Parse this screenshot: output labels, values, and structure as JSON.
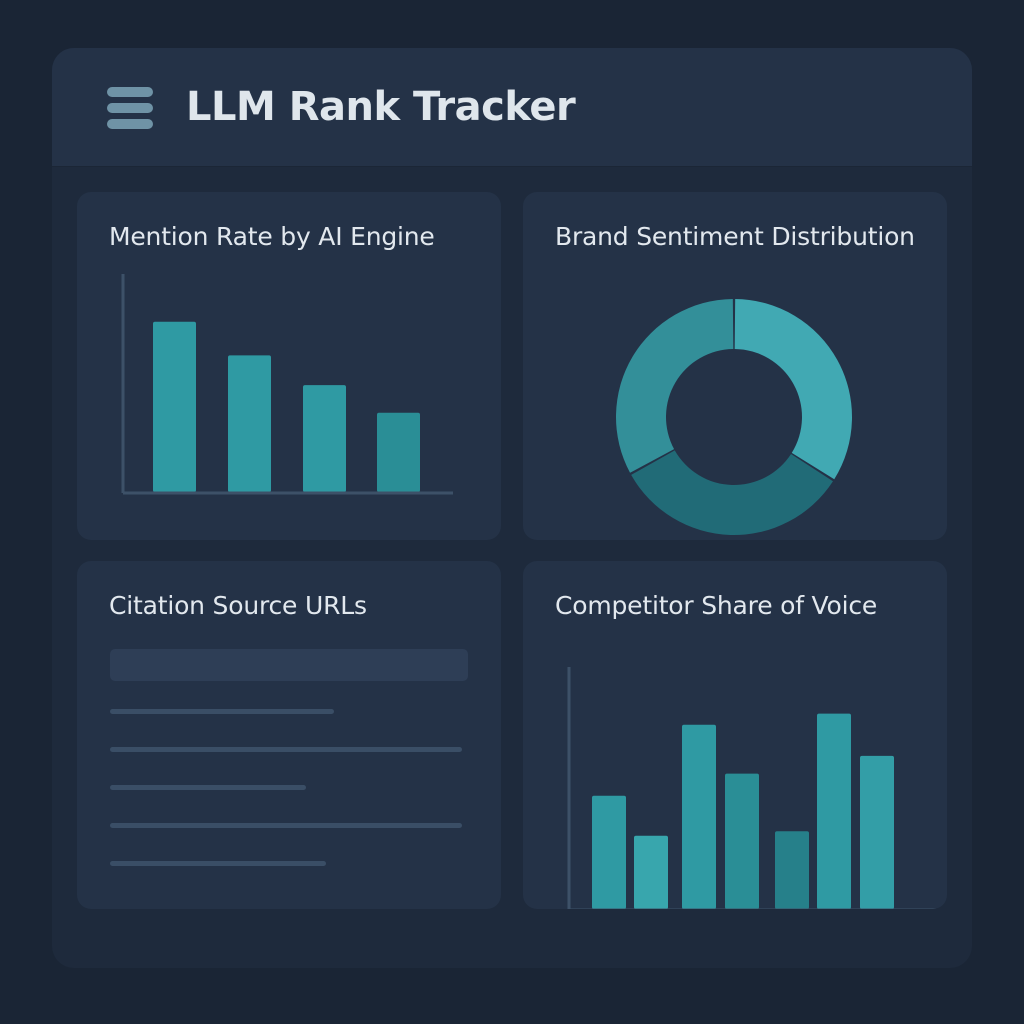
{
  "app": {
    "title": "LLM Rank Tracker",
    "menu_icon": "hamburger-menu-icon"
  },
  "colors": {
    "background": "#1a2535",
    "panel": "#1e2a3c",
    "card": "#243247",
    "accent_teal": "#2f9aa3",
    "accent_teal_light": "#41a9b3",
    "accent_teal_dark": "#216b77",
    "text": "#e2e8ee"
  },
  "cards": {
    "mention": {
      "title": "Mention Rate by AI Engine"
    },
    "sentiment": {
      "title": "Brand Sentiment Distribution"
    },
    "citations": {
      "title": "Citation Source URLs"
    },
    "competitor": {
      "title": "Competitor Share of Voice"
    }
  },
  "chart_data": [
    {
      "type": "bar",
      "values": [
        86,
        69,
        54,
        40
      ],
      "ylim": [
        0,
        100
      ],
      "colors": [
        "#2f9aa3",
        "#2f9aa3",
        "#2f9aa3",
        "#2a8e96"
      ],
      "grid": false,
      "title": "Mention Rate by AI Engine"
    },
    {
      "type": "pie",
      "donut": true,
      "values": [
        34,
        33,
        33
      ],
      "colors": [
        "#41a9b3",
        "#216b77",
        "#338f99"
      ],
      "title": "Brand Sentiment Distribution"
    },
    {
      "type": "bar",
      "values": [
        51,
        33,
        83,
        61,
        35,
        88,
        69
      ],
      "ylim": [
        0,
        100
      ],
      "colors": [
        "#2f9aa3",
        "#38a6ad",
        "#2f9aa3",
        "#2a8e96",
        "#26808a",
        "#2f9aa3",
        "#339ea7"
      ],
      "grid": false,
      "title": "Competitor Share of Voice"
    }
  ],
  "citations": {
    "rows": 5
  }
}
